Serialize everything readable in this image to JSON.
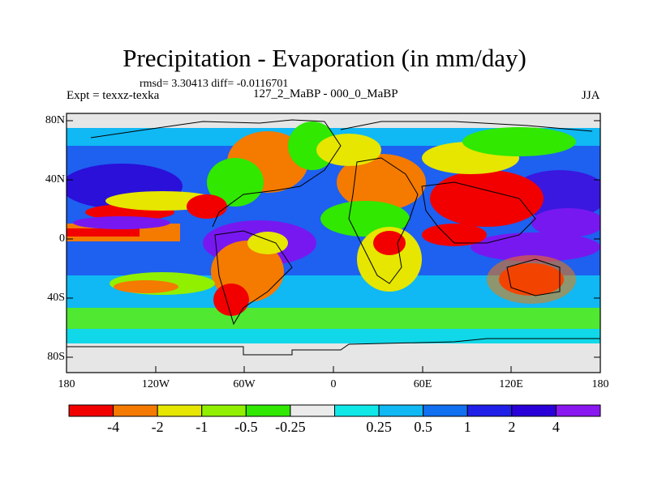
{
  "title": "Precipitation - Evaporation (in mm/day)",
  "stats": "rmsd= 3.30413 diff= -0.0116701",
  "expt": "Expt = texxz-texka",
  "subtitle": "127_2_MaBP - 000_0_MaBP",
  "season": "JJA",
  "lat_ticks": [
    "80N",
    "40N",
    "0",
    "40S",
    "80S"
  ],
  "lon_ticks": [
    "180",
    "120W",
    "60W",
    "0",
    "60E",
    "120E",
    "180"
  ],
  "colorbar": {
    "colors": [
      "#f20000",
      "#f47a00",
      "#e6e600",
      "#90f000",
      "#30e800",
      "#ebebeb",
      "#10e8e8",
      "#10b8f4",
      "#1070f0",
      "#2020e8",
      "#2a00d8",
      "#8a18f0"
    ],
    "labels": [
      "-4",
      "-2",
      "-1",
      "-0.5",
      "-0.25",
      "0.25",
      "0.5",
      "1",
      "2",
      "4"
    ]
  }
}
